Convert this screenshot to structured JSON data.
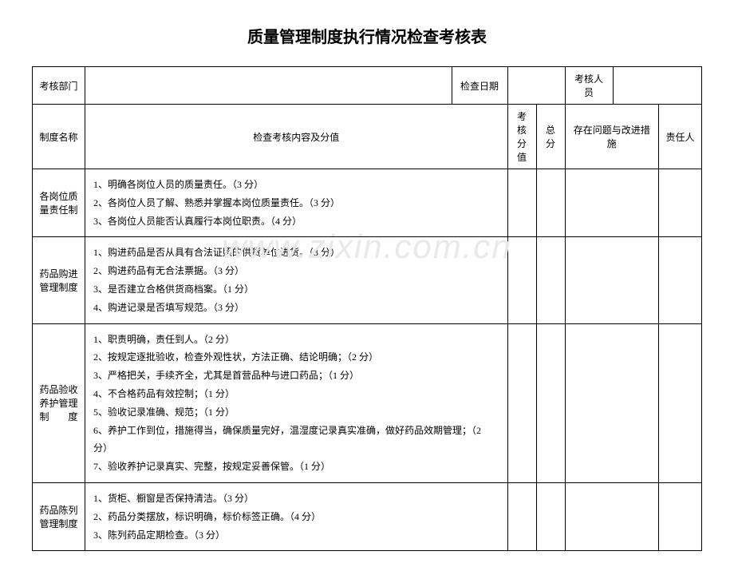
{
  "title": "质量管理制度执行情况检查考核表",
  "watermark": "www.zixin.com.cn",
  "header_row": {
    "dept_label": "考核部门",
    "date_label": "检查日期",
    "person_label": "考核人员"
  },
  "columns": {
    "name": "制度名称",
    "content": "检查考核内容及分值",
    "score": "考核分值",
    "total": "总分",
    "issue": "存在问题与改进措施",
    "resp": "责任人"
  },
  "rows": [
    {
      "name": "各岗位质量责任制",
      "content": "1、明确各岗位人员的质量责任。（3 分）\n2、各岗位人员了解、熟悉并掌握本岗位质量责任。（3 分）\n3、各岗位人员能否认真履行本岗位职责。（4 分）"
    },
    {
      "name": "药品购进管理制度",
      "content": "1、购进药品是否从具有合法证照的供货单位进货。（3 分）\n2、购进药品有无合法票据。（3 分）\n3、是否建立合格供货商档案。（1 分）\n4、购进记录是否填写规范。（3 分）"
    },
    {
      "name": "药品验收养护管理制　　度",
      "content": "1、职责明确，责任到人。（2 分）\n2、按规定逐批验收，检查外观性状，方法正确、结论明确；（2 分）\n3、严格把关，手续齐全，尤其是首营品种与进口药品；（1 分）\n4、不合格药品有效控制；（1 分）\n5、验收记录准确、规范；（1 分）\n6、养护工作到位，措施得当，确保质量完好，温湿度记录真实准确，做好药品效期管理；（2 分）\n7、验收养护记录真实、完整，按规定妥善保管。（1 分）"
    },
    {
      "name": "药品陈列管理制度",
      "content": "1、货柜、橱窗是否保持清洁。（3 分）\n2、药品分类摆放，标识明确，标价标签正确。（4 分）\n3、陈列药品定期检查。（3 分）"
    }
  ]
}
